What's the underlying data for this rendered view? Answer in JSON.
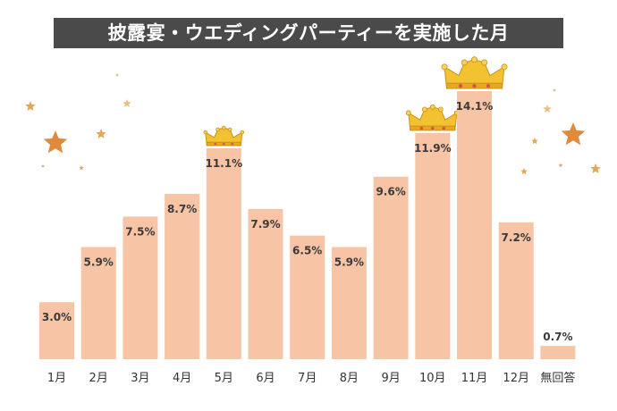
{
  "title": "披露宴・ウエディングパーティーを実施した月",
  "colors": {
    "bar": "#f7c4a6",
    "title_background": "#4a4a4a",
    "crown": "#f2c230",
    "star": "#e89a4a"
  },
  "icons": [
    "crown-icon",
    "star-icon"
  ],
  "chart_data": {
    "type": "bar",
    "categories": [
      "1月",
      "2月",
      "3月",
      "4月",
      "5月",
      "6月",
      "7月",
      "8月",
      "9月",
      "10月",
      "11月",
      "12月",
      "無回答"
    ],
    "values": [
      3.0,
      5.9,
      7.5,
      8.7,
      11.1,
      7.9,
      6.5,
      5.9,
      9.6,
      11.9,
      14.1,
      7.2,
      0.7
    ],
    "value_labels": [
      "3.0%",
      "5.9%",
      "7.5%",
      "8.7%",
      "11.1%",
      "7.9%",
      "6.5%",
      "5.9%",
      "9.6%",
      "11.9%",
      "14.1%",
      "7.2%",
      "0.7%"
    ],
    "unit": "%",
    "ylim": [
      0,
      14.1
    ],
    "grid": false,
    "legend": "none",
    "crowned_categories": [
      "11月",
      "10月",
      "5月"
    ]
  }
}
